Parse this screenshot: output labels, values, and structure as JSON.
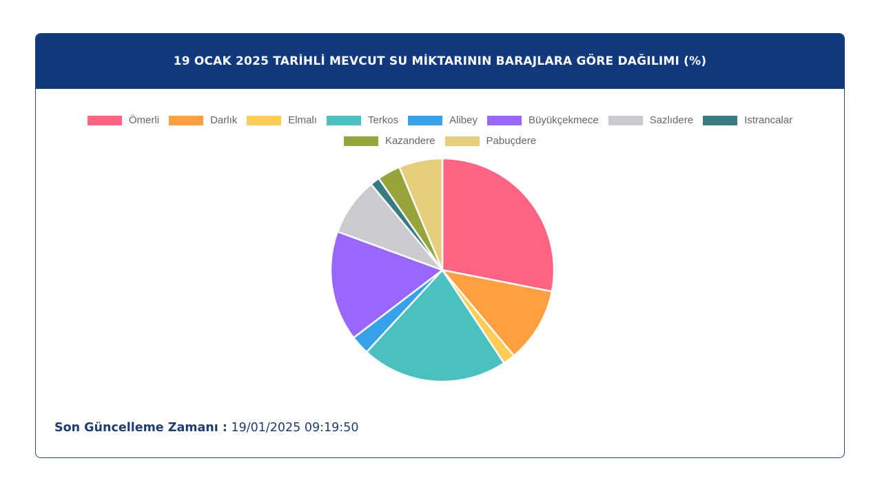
{
  "header": {
    "title": "19 OCAK 2025 TARİHLİ MEVCUT SU MİKTARININ BARAJLARA GÖRE DAĞILIMI (%)"
  },
  "colors": {
    "header_bg": "#113a7e",
    "border": "#1e4584",
    "footer_text": "#1d3e74"
  },
  "chart_data": {
    "type": "pie",
    "title": "19 OCAK 2025 TARİHLİ MEVCUT SU MİKTARININ BARAJLARA GÖRE DAĞILIMI (%)",
    "legend_position": "top",
    "categories": [
      "Ömerli",
      "Darlık",
      "Elmalı",
      "Terkos",
      "Alibey",
      "Büyükçekmece",
      "Sazlıdere",
      "Istrancalar",
      "Kazandere",
      "Pabuçdere"
    ],
    "values": [
      28.5,
      11.0,
      1.8,
      21.5,
      2.8,
      16.2,
      8.5,
      1.4,
      3.4,
      6.4
    ],
    "colors": [
      "#ff6384",
      "#ff9f40",
      "#ffcd56",
      "#4bc0c0",
      "#36a2eb",
      "#9966ff",
      "#c9cbcf",
      "#367c80",
      "#97a33b",
      "#e6ce7d"
    ]
  },
  "footer": {
    "label": "Son Güncelleme Zamanı :",
    "timestamp": "19/01/2025 09:19:50"
  }
}
